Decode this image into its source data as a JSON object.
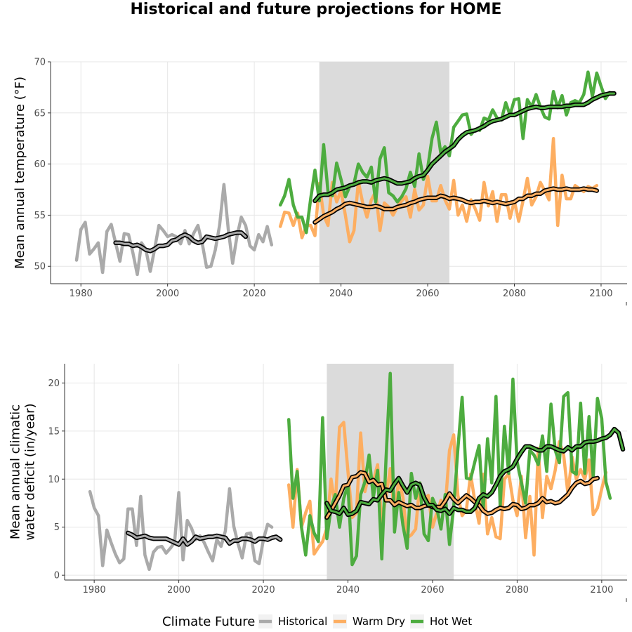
{
  "title": "Historical and future projections for HOME",
  "legend": {
    "title": "Climate Future",
    "items": [
      {
        "label": "Historical",
        "color": "#AAAAAA"
      },
      {
        "label": "Warm Dry",
        "color": "#FDAE61"
      },
      {
        "label": "Hot Wet",
        "color": "#4DAC3F"
      }
    ]
  },
  "colors": {
    "historical": "#AAAAAA",
    "warm_dry": "#FDAE61",
    "hot_wet": "#4DAC3F",
    "smooth": "#000000",
    "band": "#DBDBDB"
  },
  "chart_data": [
    {
      "type": "line",
      "ylabel": "Mean annual temperature (°F)",
      "xlim": [
        1973,
        2106
      ],
      "ylim": [
        48.3,
        70.0
      ],
      "xticks": [
        1980,
        2000,
        2020,
        2040,
        2060,
        2080,
        2100
      ],
      "yticks": [
        50,
        55,
        60,
        65,
        70
      ],
      "shaded_period": [
        2035,
        2065
      ],
      "series": [
        {
          "name": "Historical",
          "color_key": "historical",
          "start": 1979,
          "values": [
            50.6,
            53.6,
            54.3,
            51.2,
            51.7,
            52.3,
            49.4,
            53.4,
            54.1,
            52.3,
            50.5,
            53.2,
            53.1,
            51.3,
            49.2,
            52.3,
            51.6,
            49.5,
            51.7,
            54.0,
            53.5,
            52.9,
            53.1,
            52.9,
            52.2,
            53.5,
            52.2,
            53.2,
            54.0,
            52.2,
            49.9,
            50.0,
            51.6,
            54.0,
            58.0,
            53.6,
            50.3,
            52.9,
            54.8,
            54.0,
            52.0,
            51.6,
            53.1,
            52.4,
            53.9,
            52.1
          ]
        },
        {
          "name": "Warm Dry",
          "color_key": "warm_dry",
          "start": 2026,
          "values": [
            53.9,
            55.3,
            55.2,
            54.0,
            55.2,
            52.8,
            54.0,
            54.0,
            53.0,
            58.1,
            55.0,
            54.0,
            58.2,
            56.3,
            57.4,
            55.0,
            52.4,
            53.5,
            58.3,
            56.2,
            54.8,
            56.5,
            57.3,
            53.5,
            56.2,
            55.8,
            55.0,
            55.8,
            56.4,
            56.8,
            54.8,
            57.5,
            55.5,
            56.0,
            58.8,
            56.4,
            56.4,
            57.9,
            56.5,
            55.6,
            58.4,
            55.0,
            56.0,
            54.4,
            56.5,
            55.6,
            54.5,
            58.2,
            55.9,
            57.3,
            54.4,
            57.0,
            57.0,
            54.7,
            56.4,
            54.4,
            56.4,
            58.6,
            56.0,
            56.8,
            58.2,
            57.4,
            56.5,
            62.5,
            54.0,
            58.9,
            56.6,
            56.6,
            57.9,
            57.6,
            57.3,
            57.8,
            57.6,
            57.9
          ]
        },
        {
          "name": "Hot Wet",
          "color_key": "hot_wet",
          "start": 2026,
          "values": [
            56.0,
            56.9,
            58.5,
            56.0,
            54.8,
            54.8,
            53.3,
            56.6,
            59.4,
            56.4,
            61.9,
            57.3,
            56.9,
            60.1,
            58.5,
            56.8,
            57.8,
            58.1,
            60.0,
            59.2,
            58.7,
            59.7,
            56.3,
            60.5,
            61.6,
            57.2,
            56.9,
            56.3,
            56.8,
            57.6,
            59.2,
            57.8,
            61.0,
            58.5,
            59.6,
            62.5,
            64.1,
            61.1,
            61.7,
            60.8,
            63.6,
            64.2,
            64.8,
            64.9,
            62.9,
            63.4,
            63.3,
            64.5,
            64.3,
            65.3,
            64.5,
            64.3,
            66.0,
            64.8,
            66.3,
            66.4,
            62.5,
            66.3,
            65.6,
            66.8,
            65.6,
            64.6,
            64.4,
            67.1,
            65.5,
            66.7,
            64.8,
            66.0,
            66.2,
            66.0,
            66.8,
            69.0,
            66.6,
            68.9,
            67.6,
            66.4,
            67.0
          ]
        },
        {
          "name": "",
          "color_key": "smooth",
          "outline_of": "historical",
          "start": 1988,
          "values": [
            52.3,
            52.3,
            52.2,
            52.2,
            52.0,
            52.1,
            51.9,
            51.6,
            51.5,
            51.7,
            52.0,
            52.0,
            52.1,
            52.5,
            52.6,
            52.9,
            53.1,
            52.9,
            52.5,
            52.3,
            52.4,
            52.9,
            52.8,
            52.7,
            52.8,
            52.9,
            53.1,
            53.2,
            53.3,
            53.3,
            52.9
          ]
        },
        {
          "name": "",
          "color_key": "smooth",
          "outline_of": "warm_dry",
          "start": 2034,
          "values": [
            54.3,
            54.6,
            54.9,
            55.1,
            55.3,
            55.6,
            55.8,
            56.1,
            56.2,
            56.1,
            56.0,
            55.9,
            55.8,
            55.8,
            55.9,
            55.8,
            55.6,
            55.6,
            55.6,
            55.8,
            55.9,
            56.0,
            56.2,
            56.3,
            56.5,
            56.6,
            56.7,
            56.7,
            56.7,
            56.9,
            56.8,
            56.6,
            56.7,
            56.6,
            56.5,
            56.3,
            56.2,
            56.3,
            56.3,
            56.4,
            56.3,
            56.2,
            56.3,
            56.2,
            56.1,
            56.2,
            56.3,
            56.6,
            56.6,
            56.9,
            56.9,
            57.1,
            57.1,
            57.4,
            57.5,
            57.6,
            57.5,
            57.5,
            57.6,
            57.5,
            57.5,
            57.5,
            57.6,
            57.5,
            57.5,
            57.4
          ]
        },
        {
          "name": "",
          "color_key": "smooth",
          "outline_of": "hot_wet",
          "start": 2034,
          "values": [
            56.4,
            56.9,
            57.0,
            57.0,
            57.2,
            57.5,
            57.6,
            57.7,
            57.9,
            58.0,
            58.2,
            58.3,
            58.3,
            58.2,
            58.4,
            58.5,
            58.6,
            58.5,
            58.3,
            58.1,
            58.1,
            58.2,
            58.3,
            58.6,
            58.8,
            58.9,
            59.4,
            60.0,
            60.4,
            60.8,
            61.2,
            61.5,
            61.8,
            62.4,
            62.8,
            63.1,
            63.2,
            63.3,
            63.5,
            63.7,
            64.0,
            64.2,
            64.3,
            64.4,
            64.6,
            64.8,
            64.8,
            65.0,
            65.2,
            65.4,
            65.5,
            65.6,
            65.5,
            65.5,
            65.6,
            65.6,
            65.6,
            65.6,
            65.7,
            65.7,
            65.8,
            65.8,
            65.8,
            66.0,
            66.3,
            66.5,
            66.7,
            66.8,
            66.9,
            66.9
          ]
        }
      ]
    },
    {
      "type": "line",
      "ylabel": "Mean annual climatic\nwater deficit (in/year)",
      "xlim": [
        1973,
        2106
      ],
      "ylim": [
        -0.5,
        22.0
      ],
      "xticks": [
        1980,
        2000,
        2020,
        2040,
        2060,
        2080,
        2100
      ],
      "yticks": [
        0,
        5,
        10,
        15,
        20
      ],
      "shaded_period": [
        2035,
        2065
      ],
      "series": [
        {
          "name": "Historical",
          "color_key": "historical",
          "start": 1979,
          "values": [
            8.7,
            7.0,
            6.2,
            1.0,
            4.7,
            3.4,
            2.2,
            1.3,
            1.7,
            6.9,
            6.9,
            3.1,
            8.2,
            2.1,
            0.6,
            2.4,
            2.9,
            3.0,
            2.3,
            2.8,
            3.4,
            8.6,
            1.6,
            5.7,
            4.9,
            3.7,
            4.1,
            3.4,
            2.4,
            1.5,
            3.7,
            3.0,
            4.6,
            9.0,
            5.1,
            3.3,
            1.8,
            4.3,
            4.4,
            1.5,
            1.2,
            3.7,
            5.3,
            5.0
          ]
        },
        {
          "name": "Warm Dry",
          "color_key": "warm_dry",
          "start": 2026,
          "values": [
            9.4,
            5.0,
            11.0,
            5.0,
            6.5,
            7.7,
            2.2,
            2.9,
            3.5,
            4.9,
            10.0,
            7.2,
            15.4,
            15.9,
            10.8,
            6.0,
            6.5,
            14.8,
            8.7,
            10.5,
            9.8,
            11.5,
            5.5,
            8.2,
            11.1,
            6.2,
            10.0,
            8.1,
            3.9,
            4.2,
            4.8,
            9.6,
            7.9,
            8.3,
            5.0,
            6.5,
            7.8,
            7.0,
            13.0,
            14.6,
            8.3,
            6.2,
            6.8,
            10.5,
            7.7,
            5.4,
            10.5,
            4.3,
            6.0,
            4.0,
            3.8,
            10.0,
            10.6,
            7.8,
            6.2,
            10.3,
            3.9,
            8.2,
            2.1,
            13.2,
            6.0,
            10.3,
            9.0,
            10.9,
            13.9,
            12.5,
            8.5,
            12.3,
            10.0,
            11.0,
            10.0,
            12.0,
            6.3,
            7.0,
            9.0,
            10.7
          ]
        },
        {
          "name": "Hot Wet",
          "color_key": "hot_wet",
          "start": 2026,
          "values": [
            16.2,
            8.0,
            10.8,
            5.0,
            2.1,
            6.2,
            4.4,
            3.5,
            16.4,
            3.8,
            7.0,
            8.4,
            5.0,
            8.0,
            9.4,
            1.1,
            2.0,
            8.4,
            9.7,
            12.5,
            8.1,
            10.9,
            1.7,
            12.1,
            21.0,
            4.5,
            8.6,
            5.2,
            2.8,
            10.6,
            8.0,
            9.6,
            4.3,
            3.6,
            8.0,
            7.0,
            4.8,
            8.4,
            3.2,
            7.1,
            13.2,
            18.5,
            10.1,
            10.0,
            11.8,
            13.5,
            6.9,
            14.2,
            9.6,
            18.6,
            7.2,
            15.5,
            10.6,
            20.4,
            11.8,
            9.7,
            7.5,
            13.0,
            12.5,
            11.5,
            14.5,
            10.8,
            17.8,
            13.0,
            11.7,
            18.6,
            19.0,
            10.8,
            10.5,
            17.9,
            10.6,
            16.5,
            10.2,
            18.4,
            16.3,
            9.7,
            8.0
          ]
        },
        {
          "name": "",
          "color_key": "smooth",
          "outline_of": "historical",
          "start": 1988,
          "values": [
            4.4,
            4.2,
            3.9,
            4.0,
            4.1,
            3.9,
            3.8,
            3.8,
            3.8,
            3.8,
            3.6,
            3.4,
            3.2,
            3.8,
            3.2,
            3.5,
            4.0,
            3.8,
            3.9,
            4.0,
            4.0,
            4.1,
            4.0,
            3.9,
            3.3,
            3.6,
            3.6,
            3.8,
            3.8,
            3.7,
            3.5,
            3.8,
            3.8,
            3.7,
            3.9,
            4.0,
            3.7
          ]
        },
        {
          "name": "",
          "color_key": "smooth",
          "outline_of": "warm_dry",
          "start": 2035,
          "values": [
            6.0,
            6.7,
            7.5,
            8.3,
            9.3,
            9.4,
            10.2,
            10.3,
            10.7,
            10.6,
            9.7,
            9.9,
            9.4,
            9.5,
            7.8,
            7.8,
            7.3,
            7.6,
            7.4,
            7.2,
            7.3,
            7.0,
            7.0,
            7.2,
            7.3,
            7.1,
            7.1,
            7.1,
            7.7,
            8.5,
            7.9,
            7.5,
            7.9,
            8.3,
            8.0,
            7.6,
            7.3,
            6.7,
            6.4,
            6.5,
            6.8,
            7.0,
            6.9,
            7.0,
            7.4,
            7.3,
            6.9,
            7.0,
            7.3,
            7.3,
            7.5,
            8.0,
            7.6,
            7.7,
            7.5,
            7.6,
            8.0,
            8.4,
            9.1,
            9.6,
            9.8,
            9.5,
            9.6,
            10.0,
            10.1
          ]
        },
        {
          "name": "",
          "color_key": "smooth",
          "outline_of": "hot_wet",
          "start": 2035,
          "values": [
            7.5,
            6.7,
            6.6,
            6.4,
            7.0,
            6.3,
            6.4,
            6.7,
            7.6,
            7.5,
            7.4,
            7.9,
            7.8,
            8.4,
            8.9,
            8.8,
            9.5,
            10.1,
            9.3,
            8.6,
            9.4,
            9.6,
            9.4,
            8.1,
            7.3,
            7.3,
            6.8,
            6.7,
            6.9,
            6.4,
            7.0,
            6.8,
            6.8,
            6.6,
            6.6,
            7.0,
            8.0,
            8.4,
            8.2,
            8.6,
            9.4,
            10.3,
            10.8,
            11.0,
            11.3,
            12.1,
            12.8,
            13.4,
            13.4,
            13.2,
            13.0,
            13.0,
            13.4,
            13.4,
            13.2,
            13.0,
            12.9,
            13.3,
            13.0,
            13.4,
            13.4,
            13.8,
            13.9,
            13.9,
            14.0,
            14.2,
            14.3,
            14.6,
            15.2,
            14.8,
            13.1
          ]
        }
      ]
    }
  ]
}
